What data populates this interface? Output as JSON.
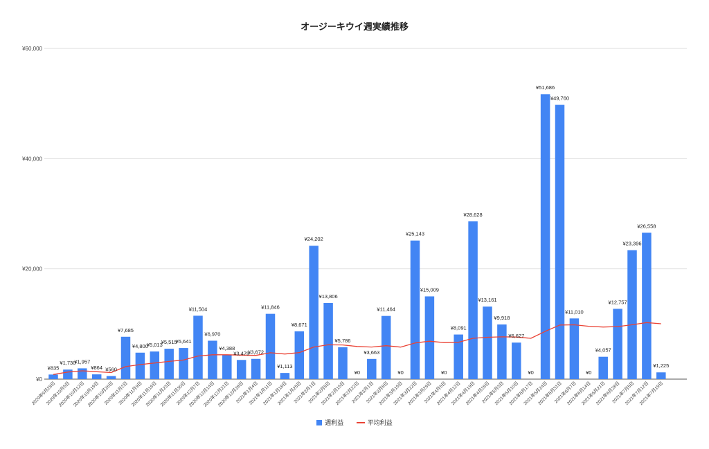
{
  "chart_data": {
    "type": "bar",
    "title": "オージーキウイ週実績推移",
    "xlabel": "",
    "ylabel": "",
    "ylim": [
      0,
      60000
    ],
    "y_ticks": [
      "¥0",
      "¥20,000",
      "¥40,000",
      "¥60,000"
    ],
    "y_tick_values": [
      0,
      20000,
      40000,
      60000
    ],
    "grid": true,
    "legend_position": "bottom",
    "categories": [
      "2020年9月28日",
      "2020年10月5日",
      "2020年10月12日",
      "2020年10月19日",
      "2020年10月26日",
      "2020年11月2日",
      "2020年11月9日",
      "2020年11月16日",
      "2020年11月23日",
      "2020年11月30日",
      "2020年12月7日",
      "2020年12月14日",
      "2020年12月21日",
      "2020年12月28日",
      "2021年1月4日",
      "2021年1月11日",
      "2021年1月18日",
      "2021年1月25日",
      "2021年2月1日",
      "2021年2月8日",
      "2021年2月15日",
      "2021年2月22日",
      "2021年3月1日",
      "2021年3月8日",
      "2021年3月15日",
      "2021年3月22日",
      "2021年3月29日",
      "2021年4月5日",
      "2021年4月12日",
      "2021年4月19日",
      "2021年4月26日",
      "2021年5月3日",
      "2021年5月10日",
      "2021年5月17日",
      "2021年5月24日",
      "2021年5月31日",
      "2021年6月7日",
      "2021年6月14日",
      "2021年6月21日",
      "2021年6月28日",
      "2021年7月5日",
      "2021年7月12日",
      "2021年7月19日"
    ],
    "series": [
      {
        "name": "週利益",
        "kind": "bar",
        "color": "#4285f4",
        "values": [
          835,
          1730,
          1957,
          864,
          560,
          7685,
          4800,
          5013,
          5515,
          5641,
          11504,
          6970,
          4388,
          3479,
          3672,
          11846,
          1113,
          8671,
          24202,
          13806,
          5786,
          0,
          3663,
          11464,
          0,
          25143,
          15009,
          0,
          8091,
          28628,
          13161,
          9918,
          6627,
          0,
          51686,
          49760,
          11010,
          0,
          4057,
          12757,
          23396,
          26558,
          1225
        ],
        "labels": [
          "¥835",
          "¥1,730",
          "¥1,957",
          "¥864",
          "¥560",
          "¥7,685",
          "¥4,800",
          "¥5,013",
          "¥5,515",
          "¥5,641",
          "¥11,504",
          "¥6,970",
          "¥4,388",
          "¥3,479",
          "¥3,672",
          "¥11,846",
          "¥1,113",
          "¥8,671",
          "¥24,202",
          "¥13,806",
          "¥5,786",
          "¥0",
          "¥3,663",
          "¥11,464",
          "¥0",
          "¥25,143",
          "¥15,009",
          "¥0",
          "¥8,091",
          "¥28,628",
          "¥13,161",
          "¥9,918",
          "¥6,627",
          "¥0",
          "¥51,686",
          "¥49,760",
          "¥11,010",
          "¥0",
          "¥4,057",
          "¥12,757",
          "¥23,396",
          "¥26,558",
          "¥1,225"
        ]
      },
      {
        "name": "平均利益",
        "kind": "line",
        "color": "#ea4335",
        "values": [
          835,
          1283,
          1507,
          1347,
          1189,
          2271,
          2632,
          2930,
          3218,
          3461,
          4192,
          4423,
          4420,
          4352,
          4306,
          4777,
          4561,
          4806,
          5827,
          6225,
          6204,
          5922,
          5824,
          6059,
          5817,
          6560,
          6873,
          6628,
          6678,
          7410,
          7596,
          7669,
          7637,
          7412,
          8677,
          9817,
          9850,
          9591,
          9450,
          9526,
          9863,
          10258,
          10037
        ]
      }
    ]
  },
  "legend": {
    "bar_label": "週利益",
    "line_label": "平均利益"
  }
}
